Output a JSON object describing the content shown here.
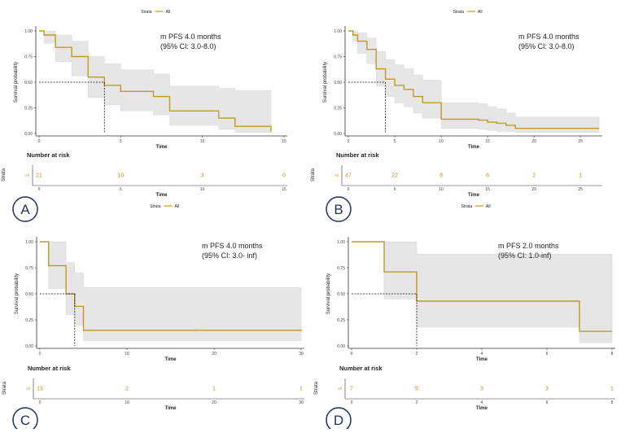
{
  "page": {
    "legend_title": "Strata",
    "legend_label": "All",
    "xlabel": "Time",
    "ylabel": "Survival probability",
    "risk_title": "Number at risk",
    "risk_axis_label": "Strata",
    "risk_row_label": "All",
    "curve_color": "#c49a1c",
    "band_color": "#e6e6e6",
    "badge_color": "#1f2f5c"
  },
  "chart_data": [
    {
      "type": "line",
      "panel": "A",
      "annotation": [
        "m PFS 4.0 months",
        "(95% CI: 3.0-8.0)"
      ],
      "xlim": [
        0,
        15
      ],
      "ylim": [
        0,
        1
      ],
      "xticks": [
        0,
        5,
        10,
        15
      ],
      "yticks": [
        0.0,
        0.25,
        0.5,
        0.75,
        1.0
      ],
      "ytick_labels": [
        "0.00",
        "0.25",
        "0.50",
        "0.75",
        "1.00"
      ],
      "median": 4.0,
      "survival": {
        "x": [
          0,
          0.3,
          1,
          2,
          3,
          4,
          5,
          7,
          8,
          11,
          12,
          14.2
        ],
        "y": [
          1,
          0.96,
          0.84,
          0.75,
          0.55,
          0.47,
          0.41,
          0.36,
          0.22,
          0.15,
          0.07,
          0.02
        ]
      },
      "ci_upper": [
        1,
        1,
        0.96,
        0.9,
        0.75,
        0.68,
        0.62,
        0.58,
        0.46,
        0.44,
        0.42,
        0.42
      ],
      "ci_lower": [
        1,
        0.88,
        0.7,
        0.56,
        0.35,
        0.28,
        0.22,
        0.18,
        0.08,
        0.04,
        0.01,
        0.0
      ],
      "censor_x": [],
      "risk_x": [
        0,
        5,
        10,
        15
      ],
      "risk_values": [
        21,
        10,
        3,
        0
      ],
      "risk_labels": [
        "21",
        "10",
        "3",
        "0"
      ],
      "risk_ticks": [
        0,
        5,
        10,
        15
      ]
    },
    {
      "type": "line",
      "panel": "B",
      "annotation": [
        "m PFS 4.0 months",
        "(95% CI: 3.0-8.0)"
      ],
      "xlim": [
        0,
        27
      ],
      "ylim": [
        0,
        1
      ],
      "xticks": [
        0,
        5,
        10,
        15,
        20,
        25
      ],
      "yticks": [
        0.0,
        0.25,
        0.5,
        0.75,
        1.0
      ],
      "ytick_labels": [
        "0.00",
        "0.25",
        "0.50",
        "0.75",
        "1.00"
      ],
      "median": 4.0,
      "survival": {
        "x": [
          0,
          0.5,
          1,
          2,
          3,
          4,
          5,
          6,
          7,
          8,
          10,
          14,
          15,
          16,
          17,
          18,
          27
        ],
        "y": [
          1,
          0.96,
          0.9,
          0.82,
          0.63,
          0.53,
          0.47,
          0.43,
          0.36,
          0.3,
          0.14,
          0.13,
          0.11,
          0.1,
          0.08,
          0.05,
          0.05
        ]
      },
      "ci_upper": [
        1,
        1,
        0.98,
        0.93,
        0.8,
        0.72,
        0.67,
        0.63,
        0.57,
        0.52,
        0.3,
        0.29,
        0.26,
        0.24,
        0.2,
        0.16,
        0.16
      ],
      "ci_lower": [
        1,
        0.9,
        0.78,
        0.68,
        0.46,
        0.36,
        0.3,
        0.26,
        0.2,
        0.15,
        0.05,
        0.04,
        0.03,
        0.02,
        0.02,
        0.01,
        0.01
      ],
      "censor_x": [],
      "risk_x": [
        0,
        5,
        10,
        15,
        20,
        25
      ],
      "risk_values": [
        47,
        22,
        8,
        6,
        2,
        1
      ],
      "risk_labels": [
        "47",
        "22",
        "8",
        "6",
        "2",
        "1"
      ],
      "risk_ticks": [
        0,
        5,
        10,
        15,
        20,
        25
      ]
    },
    {
      "type": "line",
      "panel": "C",
      "annotation": [
        "m PFS 4.0 months",
        "(95% CI: 3.0- inf)"
      ],
      "xlim": [
        0,
        30
      ],
      "ylim": [
        0,
        1
      ],
      "xticks": [
        0,
        10,
        20,
        30
      ],
      "yticks": [
        0.0,
        0.25,
        0.5,
        0.75,
        1.0
      ],
      "ytick_labels": [
        "0.00",
        "0.25",
        "0.50",
        "0.75",
        "1.00"
      ],
      "median": 4.0,
      "survival": {
        "x": [
          0,
          1,
          3,
          4,
          5,
          30
        ],
        "y": [
          1,
          0.77,
          0.5,
          0.38,
          0.15,
          0.15
        ]
      },
      "ci_upper": [
        1,
        1,
        0.8,
        0.7,
        0.56,
        0.56
      ],
      "ci_lower": [
        1,
        0.55,
        0.3,
        0.2,
        0.05,
        0.05
      ],
      "censor_x": [
        18,
        30
      ],
      "risk_x": [
        0,
        10,
        20,
        30
      ],
      "risk_values": [
        13,
        2,
        1,
        1
      ],
      "risk_labels": [
        "13",
        "2",
        "1",
        "1"
      ],
      "risk_ticks": [
        0,
        10,
        20,
        30
      ]
    },
    {
      "type": "line",
      "panel": "D",
      "annotation": [
        "m PFS 2.0 months",
        "(95% CI: 1.0-inf)"
      ],
      "xlim": [
        0,
        8
      ],
      "ylim": [
        0,
        1
      ],
      "xticks": [
        0,
        2,
        4,
        6,
        8
      ],
      "yticks": [
        0.0,
        0.25,
        0.5,
        0.75,
        1.0
      ],
      "ytick_labels": [
        "0.00",
        "0.25",
        "0.50",
        "0.75",
        "1.00"
      ],
      "median": 2.0,
      "survival": {
        "x": [
          0,
          1,
          2,
          7,
          8
        ],
        "y": [
          1,
          0.71,
          0.43,
          0.14,
          0.14
        ]
      },
      "ci_upper": [
        1,
        1,
        0.88,
        0.88,
        0.88
      ],
      "ci_lower": [
        1,
        0.45,
        0.18,
        0.03,
        0.03
      ],
      "censor_x": [],
      "risk_x": [
        0,
        2,
        4,
        6,
        8
      ],
      "risk_values": [
        7,
        5,
        3,
        3,
        1
      ],
      "risk_labels": [
        "7",
        "5",
        "3",
        "3",
        "1"
      ],
      "risk_ticks": [
        0,
        2,
        4,
        6,
        8
      ]
    }
  ]
}
